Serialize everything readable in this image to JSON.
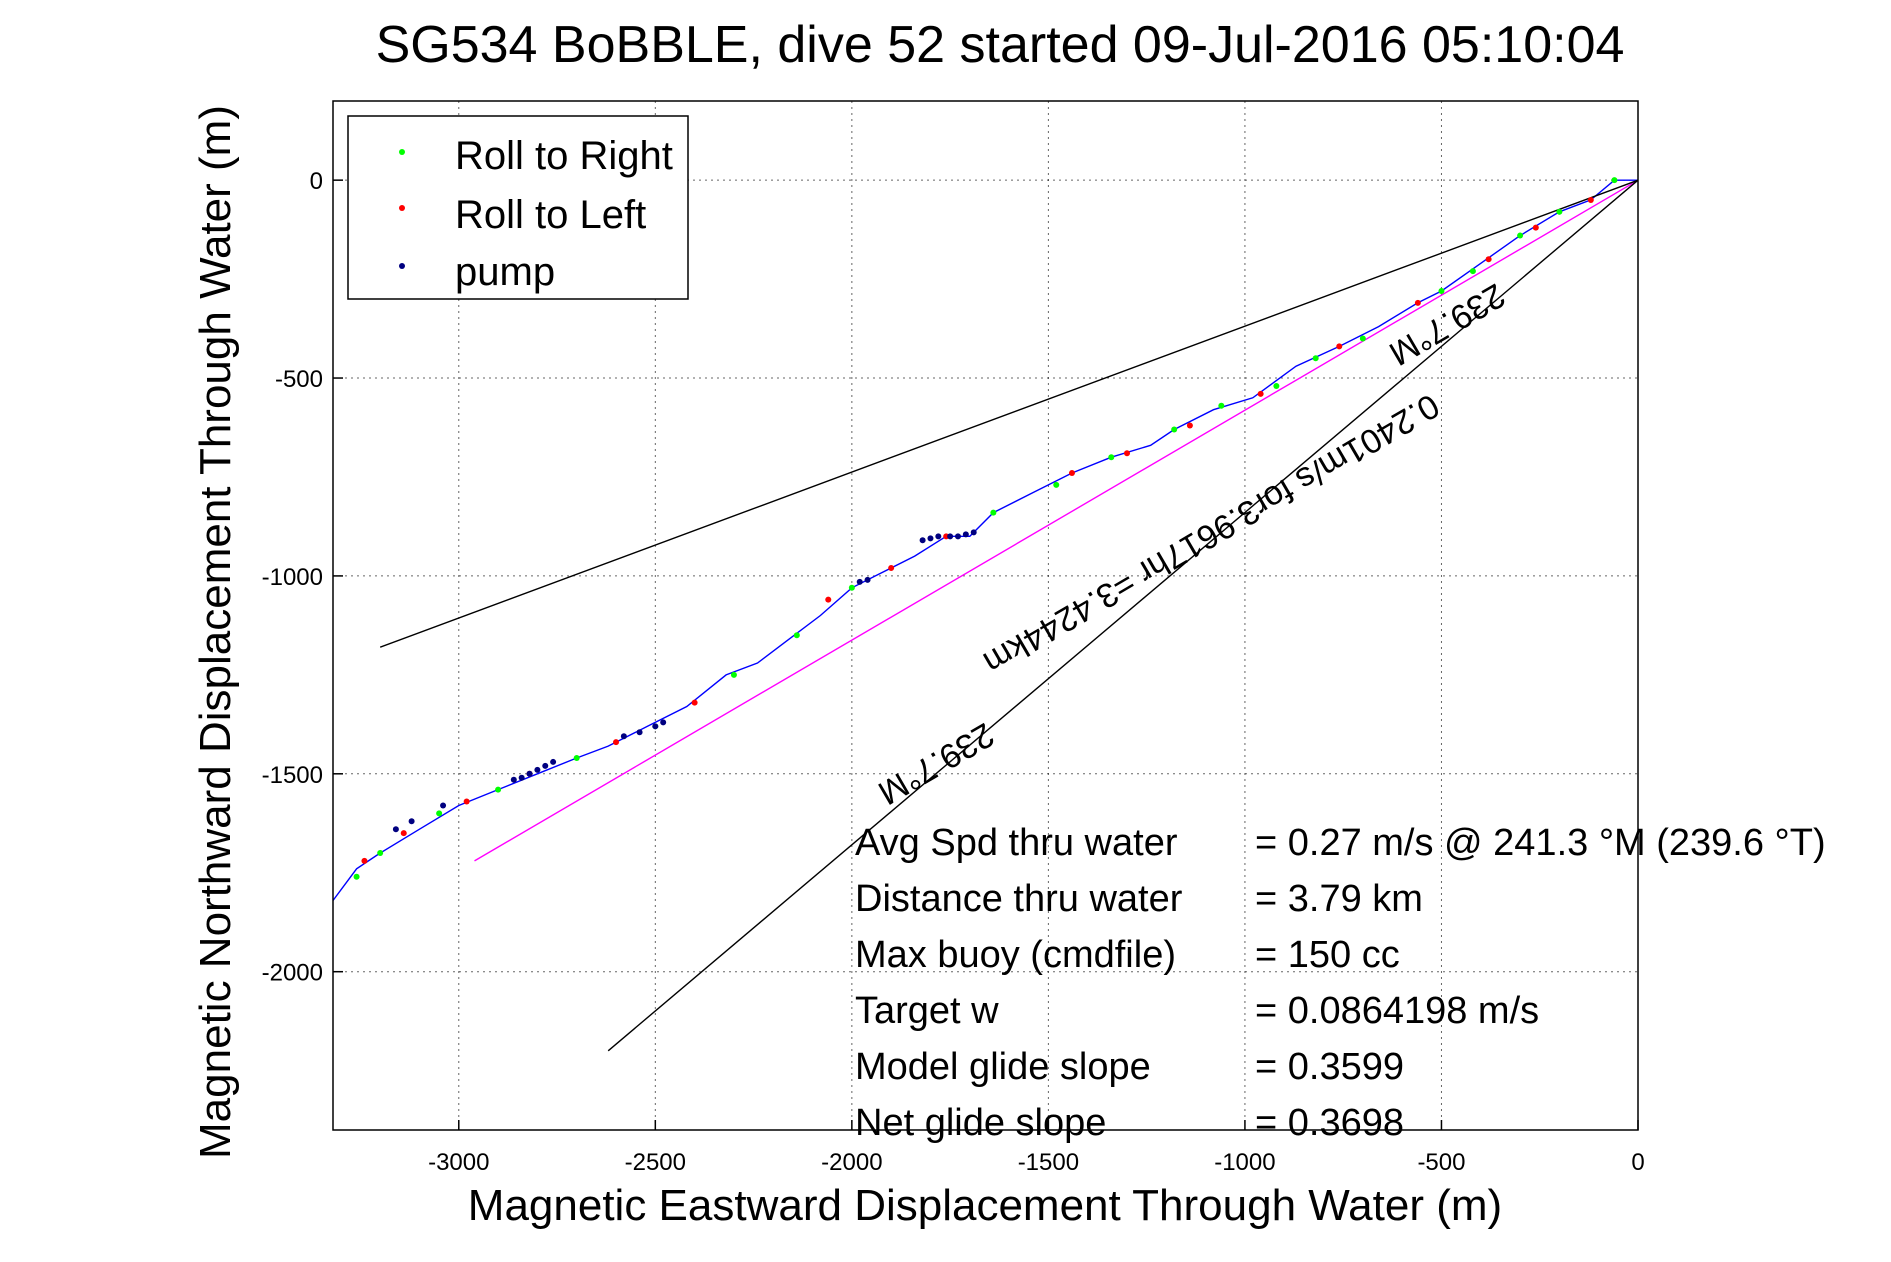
{
  "chart_data": {
    "type": "line",
    "title": "SG534 BoBBLE, dive 52 started 09-Jul-2016 05:10:04",
    "xlabel": "Magnetic Eastward Displacement Through Water (m)",
    "ylabel": "Magnetic Northward Displacement Through Water (m)",
    "xlim": [
      -3320,
      0
    ],
    "ylim": [
      -2400,
      200
    ],
    "xticks": [
      -3000,
      -2500,
      -2000,
      -1500,
      -1000,
      -500,
      0
    ],
    "xtick_labels": [
      "-3000",
      "-2500",
      "-2000",
      "-1500",
      "-1000",
      "-500",
      "0"
    ],
    "yticks": [
      0,
      -500,
      -1000,
      -1500,
      -2000
    ],
    "ytick_labels": [
      "0",
      "-500",
      "-1000",
      "-1500",
      "-2000"
    ],
    "grid": true,
    "legend": {
      "location": "top-left",
      "entries": [
        {
          "label": "Roll to Right",
          "color": "#00ff00"
        },
        {
          "label": "Roll to Left",
          "color": "#ff0000"
        },
        {
          "label": "pump",
          "color": "#000080"
        }
      ]
    },
    "series": [
      {
        "name": "track",
        "color": "#0000ff",
        "x": [
          0,
          -60,
          -120,
          -200,
          -300,
          -400,
          -500,
          -560,
          -660,
          -760,
          -870,
          -980,
          -1080,
          -1180,
          -1240,
          -1340,
          -1440,
          -1540,
          -1640,
          -1700,
          -1760,
          -1840,
          -1940,
          -2000,
          -2080,
          -2160,
          -2240,
          -2320,
          -2420,
          -2520,
          -2620,
          -2700,
          -2800,
          -2900,
          -3000,
          -3100,
          -3200,
          -3260,
          -3320
        ],
        "y": [
          0,
          0,
          -50,
          -80,
          -140,
          -210,
          -280,
          -310,
          -370,
          -420,
          -470,
          -550,
          -580,
          -630,
          -670,
          -700,
          -740,
          -790,
          -840,
          -900,
          -900,
          -950,
          -1000,
          -1030,
          -1100,
          -1160,
          -1220,
          -1250,
          -1330,
          -1380,
          -1430,
          -1460,
          -1500,
          -1540,
          -1580,
          -1640,
          -1700,
          -1740,
          -1820
        ]
      },
      {
        "name": "mean-track",
        "color": "#ff00ff",
        "x": [
          0,
          -2960
        ],
        "y": [
          0,
          -1720
        ]
      },
      {
        "name": "envelope-upper",
        "color": "#000000",
        "x": [
          0,
          -3200
        ],
        "y": [
          0,
          -1180
        ]
      },
      {
        "name": "envelope-lower",
        "color": "#000000",
        "x": [
          0,
          -2620
        ],
        "y": [
          0,
          -2200
        ]
      }
    ],
    "points": {
      "roll_right": {
        "x": [
          -60,
          -200,
          -300,
          -420,
          -500,
          -700,
          -820,
          -920,
          -1060,
          -1180,
          -1340,
          -1480,
          -1640,
          -2000,
          -2140,
          -2300,
          -2500,
          -2700,
          -2900,
          -3050,
          -3200,
          -3260
        ],
        "y": [
          0,
          -80,
          -140,
          -230,
          -280,
          -400,
          -450,
          -520,
          -570,
          -630,
          -700,
          -770,
          -840,
          -1030,
          -1150,
          -1250,
          -1380,
          -1460,
          -1540,
          -1600,
          -1700,
          -1760
        ]
      },
      "roll_left": {
        "x": [
          -120,
          -260,
          -380,
          -560,
          -760,
          -960,
          -1140,
          -1300,
          -1440,
          -1760,
          -1900,
          -2060,
          -2400,
          -2600,
          -2820,
          -2980,
          -3140,
          -3240
        ],
        "y": [
          -50,
          -120,
          -200,
          -310,
          -420,
          -540,
          -620,
          -690,
          -740,
          -900,
          -980,
          -1060,
          -1320,
          -1420,
          -1500,
          -1570,
          -1650,
          -1720
        ]
      },
      "pump": {
        "x": [
          -1690,
          -1710,
          -1730,
          -1750,
          -1780,
          -1800,
          -1820,
          -1960,
          -1980,
          -2480,
          -2500,
          -2540,
          -2580,
          -2760,
          -2780,
          -2800,
          -2820,
          -2840,
          -2860,
          -3040,
          -3120,
          -3160
        ],
        "y": [
          -890,
          -895,
          -900,
          -900,
          -900,
          -905,
          -910,
          -1010,
          -1015,
          -1370,
          -1380,
          -1395,
          -1405,
          -1470,
          -1480,
          -1490,
          -1500,
          -1510,
          -1515,
          -1580,
          -1620,
          -1640
        ]
      }
    },
    "annotations": [
      {
        "text": "239.7°M",
        "x": -1800,
        "y": -1450,
        "role": "heading-label"
      },
      {
        "text": "239.7°M",
        "x": -500,
        "y": -340,
        "role": "heading-label"
      },
      {
        "text": "0.2401m/s for3.9617hr =3.4244km",
        "x": -1100,
        "y": -870,
        "role": "current-label"
      }
    ],
    "stats": [
      {
        "label": "Avg Spd thru water",
        "value": "=  0.27 m/s @ 241.3 °M (239.6 °T)"
      },
      {
        "label": "Distance thru water",
        "value": "=  3.79 km"
      },
      {
        "label": "Max buoy (cmdfile)",
        "value": "= 150 cc"
      },
      {
        "label": "Target w",
        "value": "= 0.0864198 m/s"
      },
      {
        "label": "Model glide slope",
        "value": "= 0.3599"
      },
      {
        "label": "Net glide slope",
        "value": "= 0.3698"
      }
    ]
  }
}
